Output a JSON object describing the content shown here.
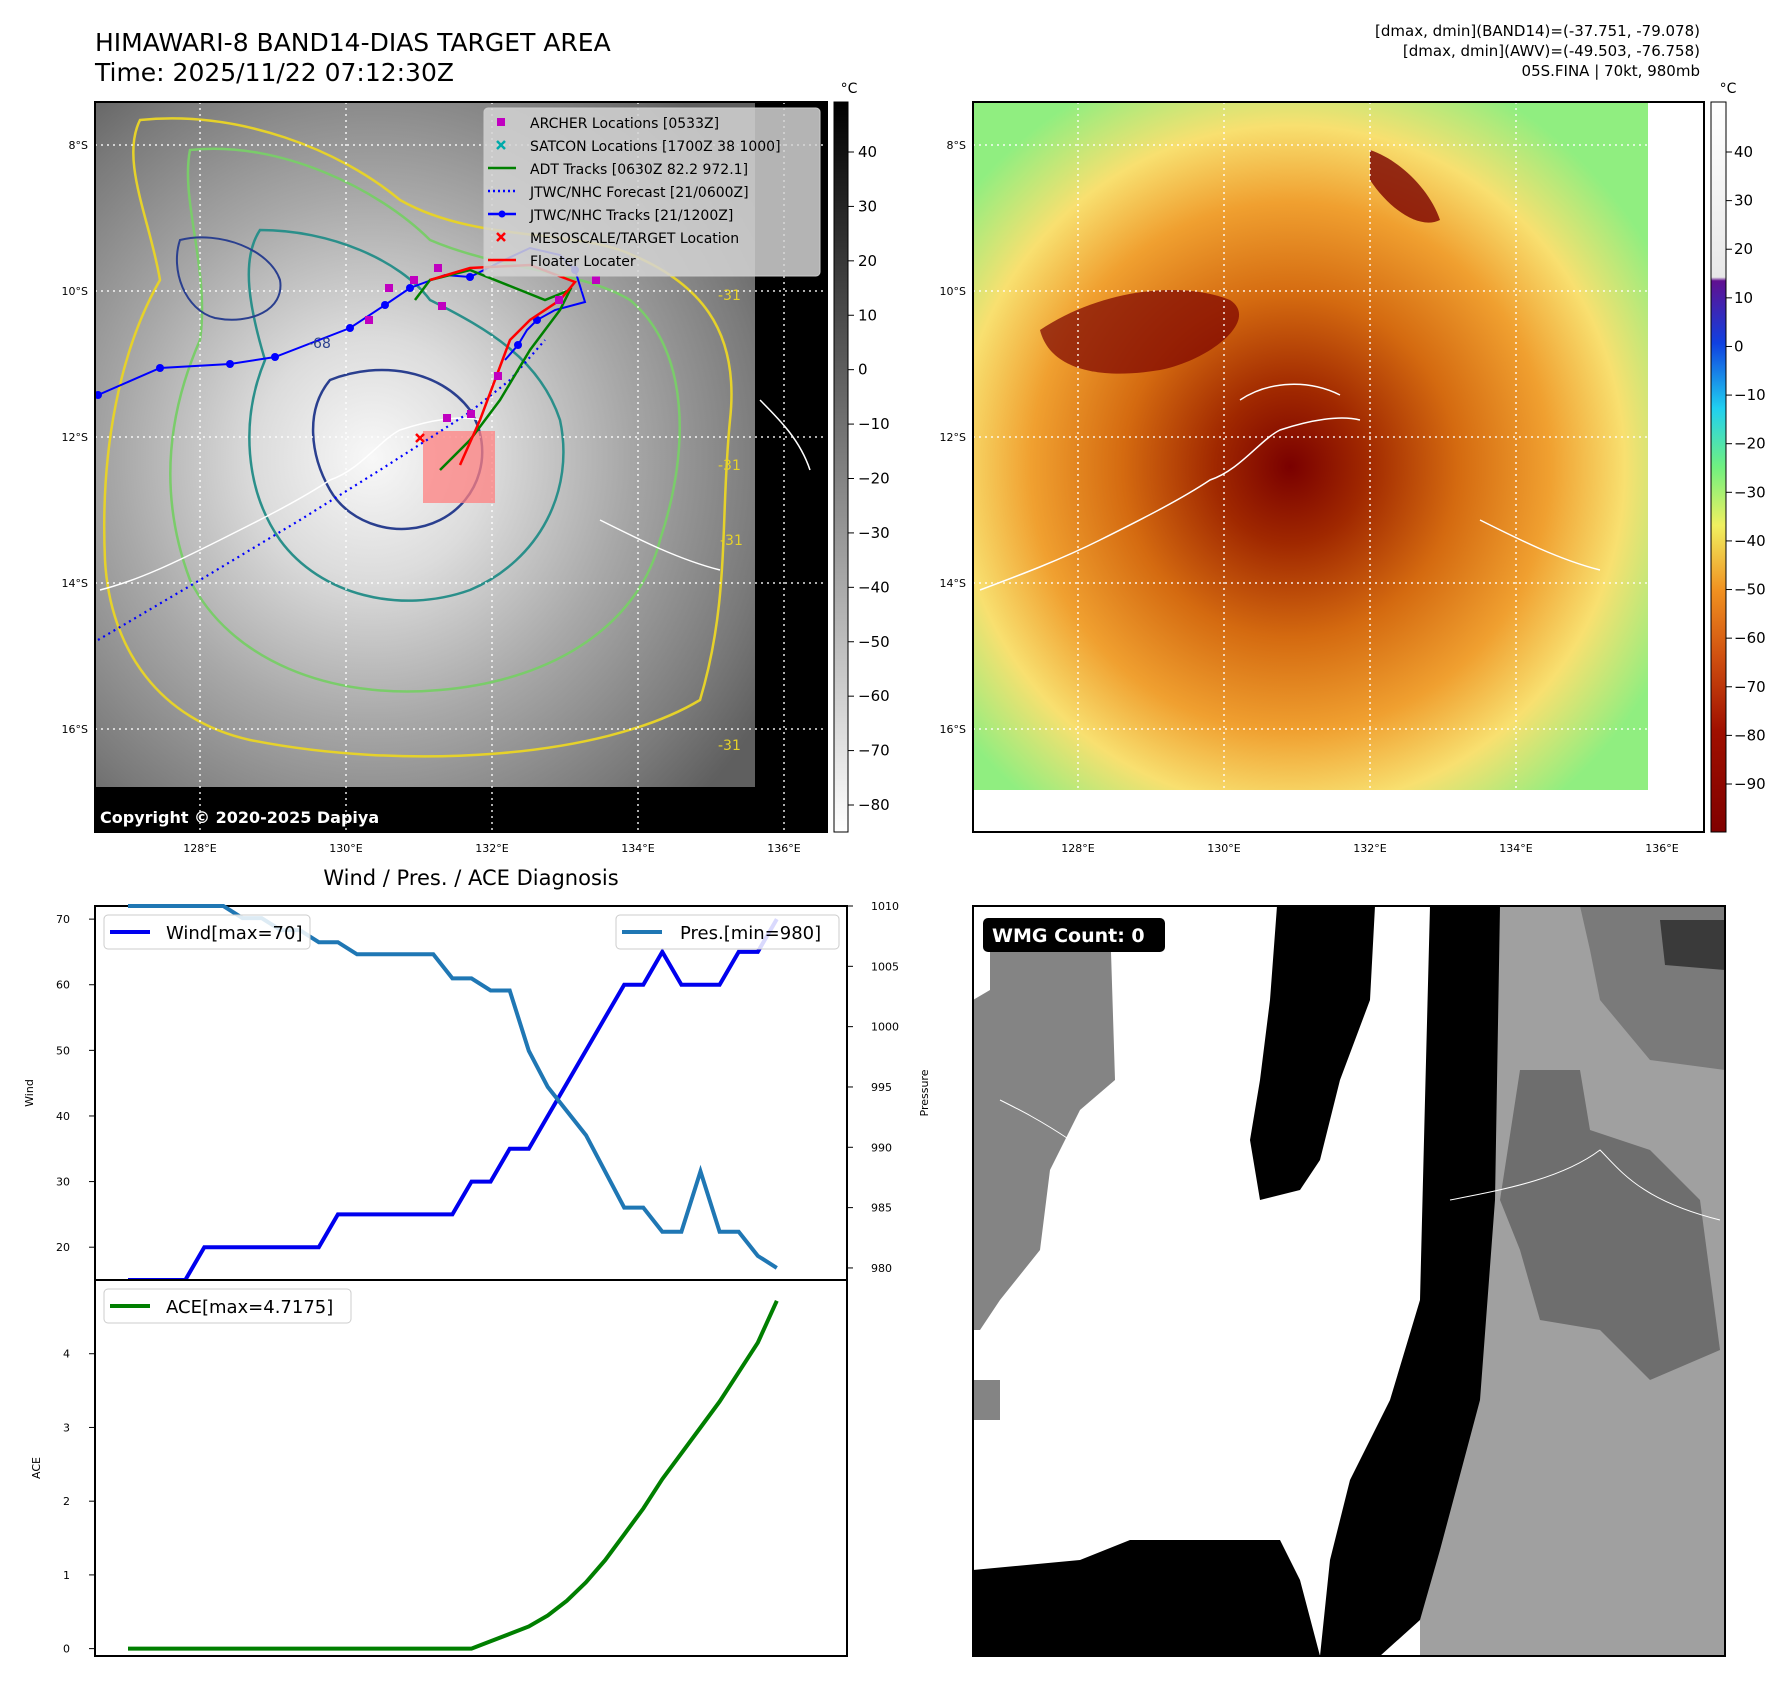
{
  "header": {
    "title_line1": "HIMAWARI-8 BAND14-DIAS TARGET AREA",
    "title_line2": "Time: 2025/11/22 07:12:30Z",
    "right_line1": "[dmax, dmin](BAND14)=(-37.751, -79.078)",
    "right_line2": "[dmax, dmin](AWV)=(-49.503, -76.758)",
    "right_line3": "05S.FINA | 70kt, 980mb"
  },
  "colors": {
    "wind": "#0000ee",
    "pressure": "#1f77b4",
    "ace": "#007f00",
    "archer": "#c000c0",
    "satcon": "#00aaaa",
    "adt": "#008000",
    "jtwc": "#0000ff",
    "target": "#ff0000"
  },
  "map": {
    "lat_labels": [
      "8°S",
      "10°S",
      "12°S",
      "14°S",
      "16°S"
    ],
    "lon_labels": [
      "128°E",
      "130°E",
      "132°E",
      "134°E",
      "136°E"
    ],
    "copyright": "Copyright © 2020-2025 Dapiya",
    "legend": [
      {
        "label": "ARCHER Locations [0533Z]",
        "icon": "square-marker"
      },
      {
        "label": "SATCON Locations [1700Z 38 1000]",
        "icon": "x-marker"
      },
      {
        "label": "ADT Tracks [0630Z 82.2 972.1]",
        "icon": "solid-line"
      },
      {
        "label": "JTWC/NHC Forecast [21/0600Z]",
        "icon": "dotted-line"
      },
      {
        "label": "JTWC/NHC Tracks [21/1200Z]",
        "icon": "dot-line"
      },
      {
        "label": "MESOSCALE/TARGET Location",
        "icon": "x-marker"
      },
      {
        "label": "Floater Locater",
        "icon": "solid-line"
      }
    ],
    "contour_labels": [
      "-31",
      "-68",
      "-31",
      "-31",
      "-31"
    ],
    "colorbar_unit": "°C",
    "gray_colorbar_ticks": [
      "40",
      "30",
      "20",
      "10",
      "0",
      "−10",
      "−20",
      "−30",
      "−40",
      "−50",
      "−60",
      "−70",
      "−80"
    ],
    "color_colorbar_ticks": [
      "40",
      "30",
      "20",
      "10",
      "0",
      "−10",
      "−20",
      "−30",
      "−40",
      "−50",
      "−60",
      "−70",
      "−80",
      "−90"
    ]
  },
  "wmg": {
    "label": "WMG Count: 0"
  },
  "chart_data": [
    {
      "type": "line",
      "title": "Wind / Pres. / ACE Diagnosis",
      "ylabel": "Wind",
      "ylabel_right": "Pressure",
      "ylim": [
        15,
        72
      ],
      "ylim_right": [
        979,
        1010
      ],
      "yticks": [
        "20",
        "30",
        "40",
        "50",
        "60",
        "70"
      ],
      "yticks_right": [
        "980",
        "985",
        "990",
        "995",
        "1000",
        "1005",
        "1010"
      ],
      "x": [
        0,
        1,
        2,
        3,
        4,
        5,
        6,
        7,
        8,
        9,
        10,
        11,
        12,
        13,
        14,
        15,
        16,
        17,
        18,
        19,
        20,
        21,
        22,
        23,
        24,
        25,
        26,
        27,
        28,
        29,
        30,
        31,
        32,
        33,
        34,
        35,
        36
      ],
      "series": [
        {
          "name": "Wind[max=70]",
          "values": [
            15,
            15,
            15,
            15,
            20,
            20,
            20,
            20,
            20,
            20,
            20,
            25,
            25,
            25,
            25,
            25,
            25,
            25,
            30,
            30,
            35,
            35,
            40,
            45,
            50,
            55,
            60,
            60,
            65,
            60,
            60,
            60,
            65,
            65,
            70,
            null,
            null
          ]
        },
        {
          "name": "Pres.[min=980]",
          "values": [
            1010,
            1010,
            1010,
            1010,
            1010,
            1010,
            1009,
            1009,
            1008,
            1008,
            1007,
            1007,
            1006,
            1006,
            1006,
            1006,
            1006,
            1004,
            1004,
            1003,
            1003,
            998,
            995,
            993,
            991,
            988,
            985,
            985,
            983,
            983,
            988,
            983,
            983,
            981,
            980,
            null,
            null
          ]
        }
      ]
    },
    {
      "type": "line",
      "ylabel": "ACE",
      "ylim": [
        -0.1,
        5
      ],
      "yticks": [
        "0",
        "1",
        "2",
        "3",
        "4"
      ],
      "series": [
        {
          "name": "ACE[max=4.7175]",
          "values": [
            0,
            0,
            0,
            0,
            0,
            0,
            0,
            0,
            0,
            0,
            0,
            0,
            0,
            0,
            0,
            0,
            0,
            0,
            0,
            0.1,
            0.2,
            0.3,
            0.45,
            0.65,
            0.9,
            1.2,
            1.55,
            1.9,
            2.3,
            2.65,
            3.0,
            3.35,
            3.75,
            4.15,
            4.7175
          ]
        }
      ]
    }
  ]
}
